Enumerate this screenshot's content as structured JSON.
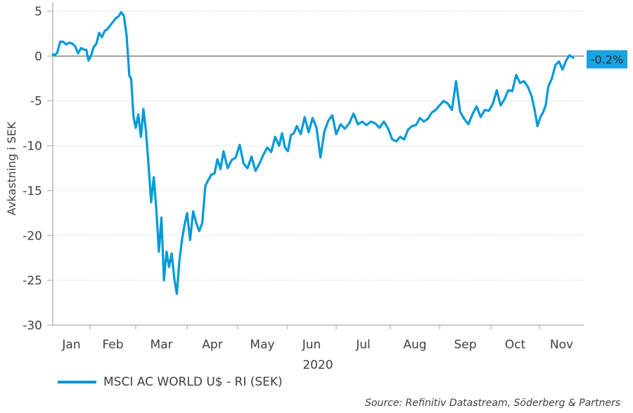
{
  "chart_data": {
    "type": "line",
    "title": "",
    "xlabel": "2020",
    "ylabel": "Avkastning i SEK",
    "ylim": [
      -30,
      5
    ],
    "yticks": [
      5,
      0,
      -5,
      -10,
      -15,
      -20,
      -25,
      -30
    ],
    "ytick_labels": [
      "5",
      "0",
      "-5",
      "-10",
      "-15",
      "-20",
      "-25",
      "-30"
    ],
    "x_categories": [
      "Jan",
      "Feb",
      "Mar",
      "Apr",
      "May",
      "Jun",
      "Jul",
      "Aug",
      "Sep",
      "Oct",
      "Nov"
    ],
    "grid": "horizontal-dotted",
    "zero_line": true,
    "legend_position": "bottom-left",
    "series": [
      {
        "name": "MSCI AC WORLD U$ - RI (SEK)",
        "color": "#0099d8",
        "x_months": [
          0.0,
          0.06,
          0.12,
          0.2,
          0.28,
          0.36,
          0.44,
          0.52,
          0.6,
          0.68,
          0.76,
          0.84,
          0.9,
          0.96,
          1.02,
          1.08,
          1.14,
          1.2,
          1.26,
          1.32,
          1.38,
          1.44,
          1.5,
          1.56,
          1.62,
          1.68,
          1.74,
          1.8,
          1.86,
          1.9,
          1.95,
          2.0,
          2.05,
          2.1,
          2.15,
          2.2,
          2.25,
          2.3,
          2.35,
          2.4,
          2.45,
          2.5,
          2.55,
          2.6,
          2.65,
          2.7,
          2.75,
          2.8,
          2.85,
          2.9,
          2.95,
          3.0,
          3.06,
          3.12,
          3.18,
          3.24,
          3.3,
          3.36,
          3.42,
          3.48,
          3.54,
          3.6,
          3.66,
          3.72,
          3.8,
          3.88,
          3.96,
          4.04,
          4.12,
          4.2,
          4.28,
          4.36,
          4.44,
          4.52,
          4.6,
          4.68,
          4.76,
          4.84,
          4.9,
          4.96,
          5.02,
          5.08,
          5.14,
          5.2,
          5.28,
          5.36,
          5.44,
          5.52,
          5.6,
          5.68,
          5.76,
          5.84,
          5.92,
          6.0,
          6.08,
          6.16,
          6.24,
          6.32,
          6.4,
          6.48,
          6.56,
          6.64,
          6.72,
          6.8,
          6.88,
          6.96,
          7.04,
          7.12,
          7.2,
          7.28,
          7.36,
          7.44,
          7.52,
          7.6,
          7.68,
          7.76,
          7.84,
          7.92,
          8.0,
          8.08,
          8.16,
          8.24,
          8.32,
          8.4,
          8.48,
          8.56,
          8.64,
          8.72,
          8.8,
          8.88,
          8.96,
          9.04,
          9.12,
          9.2,
          9.28,
          9.36,
          9.44,
          9.52,
          9.6,
          9.68,
          9.76,
          9.84,
          9.9,
          9.96,
          10.02,
          10.08,
          10.14,
          10.2,
          10.28,
          10.36,
          10.44,
          10.52,
          10.6,
          10.68,
          10.76,
          10.84
        ],
        "values": [
          0.2,
          0.1,
          0.4,
          1.6,
          1.6,
          1.3,
          1.5,
          1.4,
          1.1,
          0.3,
          0.9,
          0.7,
          0.7,
          -0.5,
          0.0,
          1.0,
          1.4,
          2.6,
          2.1,
          2.8,
          3.0,
          3.4,
          3.8,
          4.2,
          4.4,
          4.9,
          4.5,
          2.3,
          -2.2,
          -2.5,
          -6.8,
          -8.0,
          -6.5,
          -9.0,
          -5.9,
          -8.4,
          -12.3,
          -16.3,
          -13.5,
          -17.0,
          -21.8,
          -18.0,
          -25.0,
          -21.8,
          -23.5,
          -22.0,
          -24.8,
          -26.5,
          -22.8,
          -20.5,
          -18.8,
          -17.5,
          -20.5,
          -17.3,
          -18.6,
          -19.5,
          -18.6,
          -14.5,
          -13.8,
          -13.2,
          -13.1,
          -11.5,
          -12.6,
          -10.6,
          -12.5,
          -11.6,
          -11.3,
          -9.9,
          -12.0,
          -12.5,
          -11.2,
          -12.8,
          -12.0,
          -11.0,
          -10.2,
          -10.7,
          -9.0,
          -10.0,
          -8.6,
          -10.2,
          -10.6,
          -8.8,
          -8.6,
          -7.8,
          -8.7,
          -6.8,
          -8.5,
          -6.9,
          -8.0,
          -11.3,
          -8.4,
          -7.2,
          -6.6,
          -8.7,
          -7.6,
          -8.1,
          -7.5,
          -6.4,
          -7.6,
          -7.3,
          -7.7,
          -7.3,
          -7.5,
          -8.0,
          -7.3,
          -8.1,
          -9.3,
          -9.5,
          -9.0,
          -9.3,
          -8.2,
          -7.8,
          -7.7,
          -6.9,
          -7.3,
          -7.0,
          -6.3,
          -6.0,
          -5.5,
          -5.0,
          -5.3,
          -6.0,
          -2.8,
          -6.2,
          -7.0,
          -7.6,
          -6.5,
          -5.6,
          -6.8,
          -6.0,
          -6.1,
          -5.3,
          -3.8,
          -5.5,
          -4.8,
          -3.8,
          -3.9,
          -2.1,
          -3.0,
          -2.8,
          -3.4,
          -4.5,
          -6.0,
          -7.8,
          -6.8,
          -6.3,
          -5.5,
          -3.4,
          -2.5,
          -1.0,
          -0.6,
          -1.5,
          -0.5,
          0.1,
          -0.2
        ],
        "last_value_label": "-0.2%"
      }
    ]
  },
  "legend": {
    "label": "MSCI AC WORLD U$ - RI (SEK)"
  },
  "footer": {
    "source": "Source: Refinitiv Datastream, Söderberg & Partners"
  },
  "colors": {
    "line": "#0099d8",
    "callout_bg": "#1aa3e0",
    "axis": "#a6a6a6",
    "zero_line": "#808080",
    "grid": "#d9d9d9"
  }
}
